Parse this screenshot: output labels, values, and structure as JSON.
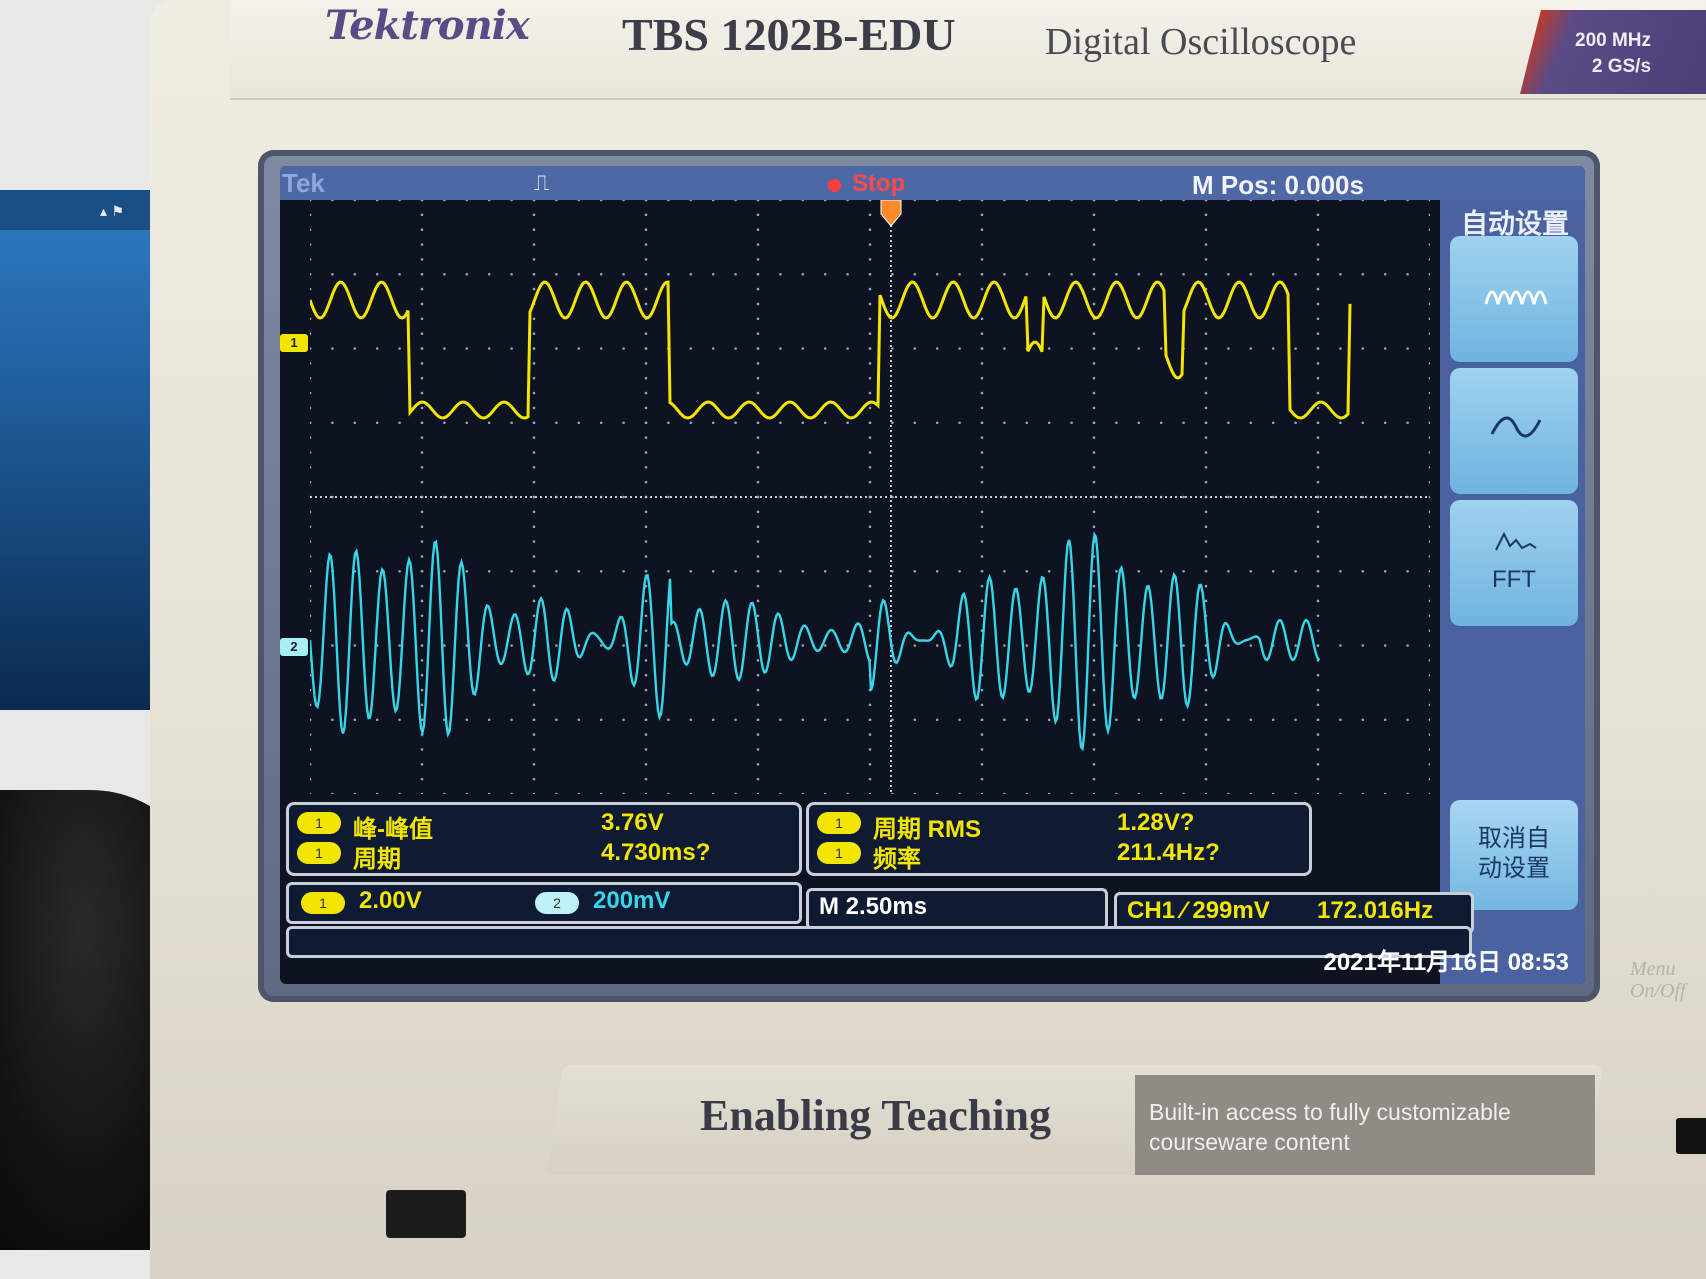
{
  "scope": {
    "brand": "Tektronix",
    "model": "TBS 1202B-EDU",
    "description": "Digital Oscilloscope",
    "spec_bandwidth": "200 MHz",
    "spec_sample_rate": "2 GS/s"
  },
  "status_bar": {
    "tek": "Tek",
    "run_state": "Stop",
    "m_pos": "M Pos: 0.000s"
  },
  "channel_markers": {
    "ch1": "1",
    "ch2": "2"
  },
  "side_menu": {
    "title": "自动设置",
    "fft_label": "FFT",
    "cancel_label_line1": "取消自",
    "cancel_label_line2": "动设置"
  },
  "measurements_left": [
    {
      "channel": "1",
      "name": "峰-峰值",
      "value": "3.76V"
    },
    {
      "channel": "1",
      "name": "周期",
      "value": "4.730ms?"
    }
  ],
  "measurements_right": [
    {
      "channel": "1",
      "name": "周期 RMS",
      "value": "1.28V?"
    },
    {
      "channel": "1",
      "name": "频率",
      "value": "211.4Hz?"
    }
  ],
  "info_bar": {
    "ch1_channel": "1",
    "ch1_scale": "2.00V",
    "ch2_channel": "2",
    "ch2_scale": "200mV",
    "timebase": "M 2.50ms",
    "trigger": "CH1 ⁄ 299mV",
    "trigger_freq": "172.016Hz"
  },
  "datetime": "2021年11月16日 08:53",
  "lower_panel": {
    "slogan": "Enabling Teaching",
    "courseware_line1": "Built-in access to fully customizable",
    "courseware_line2": "courseware content",
    "menu_onoff_line1": "Menu",
    "menu_onoff_line2": "On/Off"
  },
  "colors": {
    "ch1": "#f2e600",
    "ch2": "#35d6e8",
    "screen_bg": "#0d1320",
    "status_bar": "#4e68a6"
  }
}
